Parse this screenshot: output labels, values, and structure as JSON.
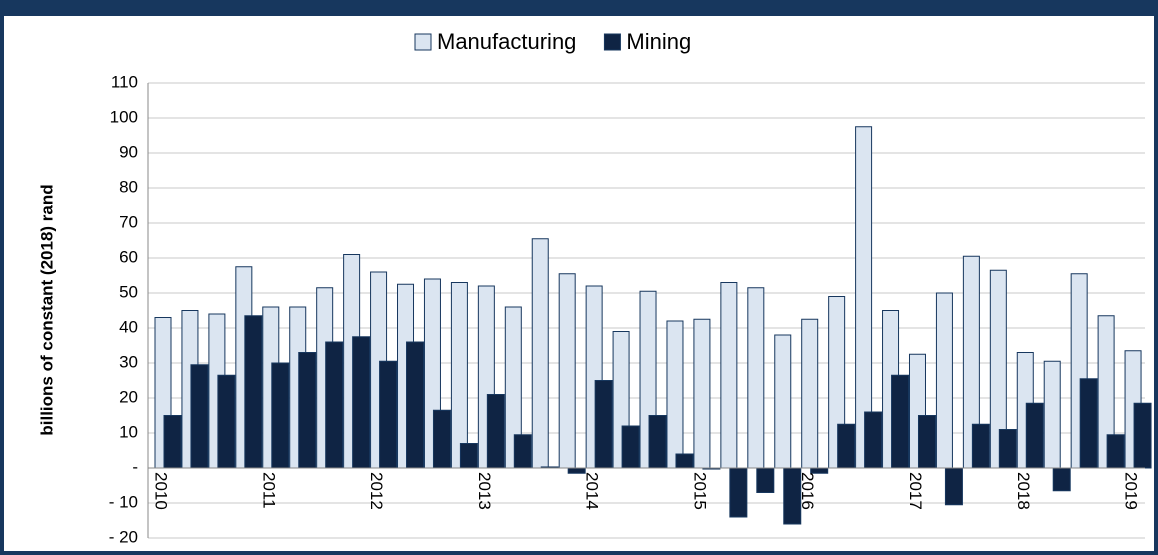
{
  "chart_data": {
    "type": "bar",
    "y_label": "billions of constant (2018) rand",
    "categories": [
      "2010",
      null,
      null,
      null,
      "2011",
      null,
      null,
      null,
      "2012",
      null,
      null,
      null,
      "2013",
      null,
      null,
      null,
      "2014",
      null,
      null,
      null,
      "2015",
      null,
      null,
      null,
      "2016",
      null,
      null,
      null,
      "2017",
      null,
      null,
      null,
      "2018",
      null,
      null,
      null,
      "2019"
    ],
    "series": [
      {
        "name": "Manufacturing",
        "color": "#dbe5f1",
        "values": [
          43,
          45,
          44,
          57.5,
          46,
          46,
          51.5,
          61,
          56,
          52.5,
          54,
          53,
          52,
          46,
          65.5,
          55.5,
          52,
          39,
          50.5,
          42,
          42.5,
          53,
          51.5,
          38,
          42.5,
          49,
          97.5,
          45,
          32.5,
          50,
          60.5,
          56.5,
          33,
          30.5,
          55.5,
          43.5,
          33.5
        ]
      },
      {
        "name": "Mining",
        "color": "#0f2444",
        "values": [
          15,
          29.5,
          26.5,
          43.5,
          30,
          33,
          36,
          37.5,
          30.5,
          36,
          16.5,
          7,
          21,
          9.5,
          0.3,
          -1.5,
          25,
          12,
          15,
          4,
          -0.3,
          -14,
          -7,
          -16,
          -1.5,
          12.5,
          16,
          26.5,
          15,
          -10.5,
          12.5,
          11,
          18.5,
          -6.5,
          25.5,
          9.5,
          18.5
        ]
      }
    ],
    "ylim": [
      -20,
      110
    ],
    "yticks": [
      {
        "value": -20,
        "label": "- 20"
      },
      {
        "value": -10,
        "label": "- 10"
      },
      {
        "value": 0,
        "label": "-"
      },
      10,
      20,
      30,
      40,
      50,
      60,
      70,
      80,
      90,
      100,
      110
    ],
    "grid": true,
    "legend": "top"
  }
}
